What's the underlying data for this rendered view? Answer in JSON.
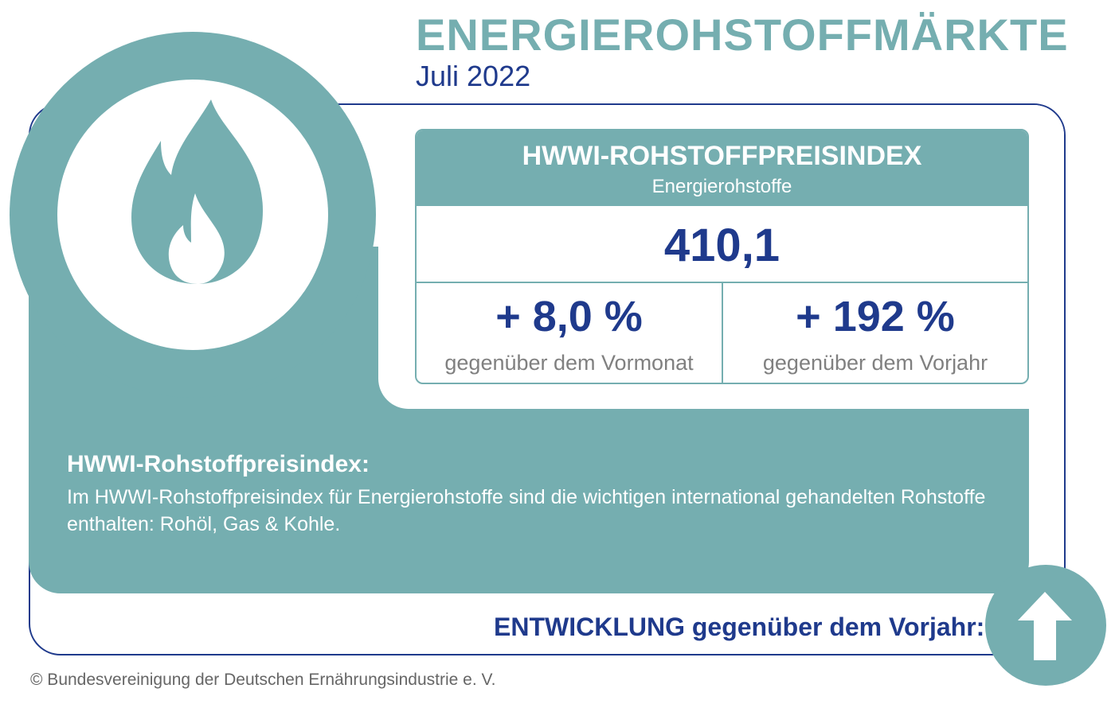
{
  "header": {
    "title": "ENERGIEROHSTOFFMÄRKTE",
    "subtitle": "Juli 2022"
  },
  "index_box": {
    "title": "HWWI-ROHSTOFFPREISINDEX",
    "subtitle": "Energierohstoffe",
    "value": "410,1",
    "monthly": {
      "value": "+ 8,0 %",
      "label": "gegenüber dem Vormonat"
    },
    "yearly": {
      "value": "+ 192 %",
      "label": "gegenüber dem Vorjahr"
    }
  },
  "description": {
    "heading": "HWWI-Rohstoffpreisindex:",
    "text": "Im HWWI-Rohstoffpreisindex für Energierohstoffe sind die wichtigen international gehandelten Rohstoffe enthalten: Rohöl, Gas & Kohle."
  },
  "trend": {
    "label": "ENTWICKLUNG gegenüber dem Vorjahr:",
    "direction_icon": "arrow-up-icon"
  },
  "icons": {
    "main": "flame-icon"
  },
  "colors": {
    "teal": "#75AEB0",
    "navy": "#1F3A8C",
    "gray_text": "#808080"
  },
  "footer": {
    "copyright": "© Bundesvereinigung der Deutschen Ernährungsindustrie e. V."
  }
}
